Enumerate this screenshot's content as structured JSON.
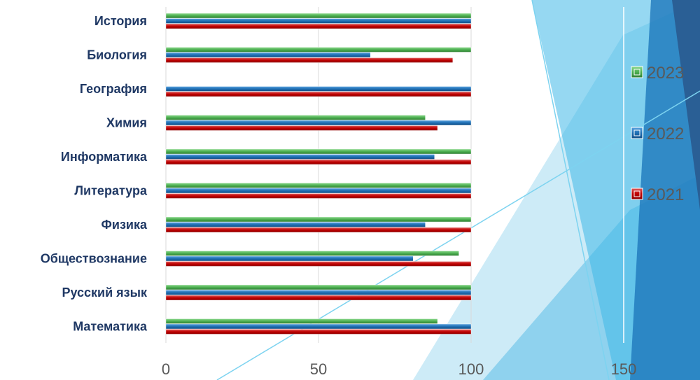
{
  "chart_data": {
    "type": "bar",
    "orientation": "horizontal",
    "categories": [
      "Математика",
      "Русский язык",
      "Обществознание",
      "Физика",
      "Литература",
      "Информатика",
      "Химия",
      "География",
      "Биология",
      "История"
    ],
    "series": [
      {
        "name": "2021",
        "color": "#C00000",
        "values": [
          100,
          100,
          100,
          100,
          100,
          100,
          89,
          100,
          94,
          100
        ]
      },
      {
        "name": "2022",
        "color": "#1F6FB4",
        "values": [
          100,
          100,
          81,
          85,
          100,
          88,
          100,
          100,
          67,
          100
        ]
      },
      {
        "name": "2023",
        "color": "#4CAF50",
        "values": [
          89,
          100,
          96,
          100,
          100,
          100,
          85,
          null,
          100,
          100
        ]
      }
    ],
    "xlim": [
      0,
      150
    ],
    "xticks": [
      0,
      50,
      100,
      150
    ],
    "grid": true,
    "legend_position": "right"
  }
}
